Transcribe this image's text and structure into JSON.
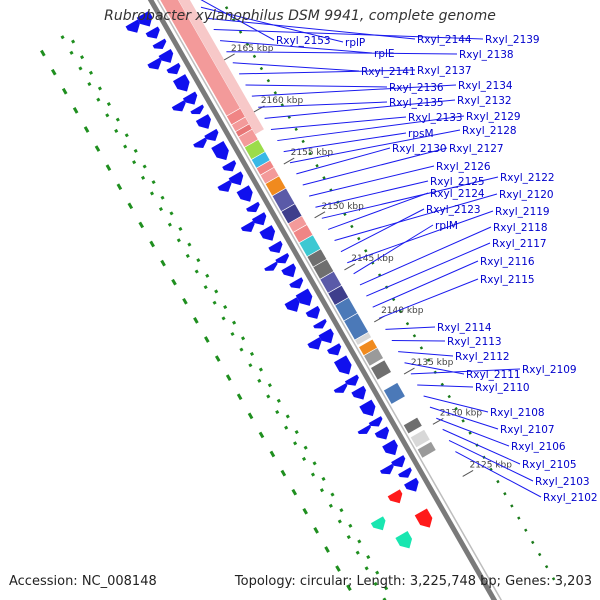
{
  "title": "Rubrobacter xylanophilus DSM 9941, complete genome",
  "accession": "Accession: NC_008148",
  "summary": "Topology: circular; Length: 3,225,748 bp; Genes: 3,203",
  "colors": {
    "gene_arrow": "#1010ee",
    "label_text": "#0000cc",
    "leader": "#1a1aee",
    "axis": "#7a7a7a",
    "gc_dots": "#1f8f1f",
    "ruler_dots": "#1a7a1a",
    "cog_palette": [
      "#f39a9a",
      "#f08585",
      "#e87676",
      "#9bdc4a",
      "#39b8e6",
      "#f08a1e",
      "#5a5aa8",
      "#3e3e8c",
      "#3dc8d2",
      "#6f6f6f",
      "#4b79b8",
      "#9a9a9a",
      "#d8d8d8",
      "#ff1a1a",
      "#19e6b0"
    ]
  },
  "ticks": [
    "2165 kbp",
    "2160 kbp",
    "2155 kbp",
    "2150 kbp",
    "2145 kbp",
    "2140 kbp",
    "2135 kbp",
    "2130 kbp",
    "2125 kbp"
  ],
  "genes": [
    {
      "label": "Rxyl_2153"
    },
    {
      "label": "rplP"
    },
    {
      "label": "Rxyl_2144"
    },
    {
      "label": "Rxyl_2139"
    },
    {
      "label": "rplE"
    },
    {
      "label": "Rxyl_2138"
    },
    {
      "label": "Rxyl_2141"
    },
    {
      "label": "Rxyl_2137"
    },
    {
      "label": "Rxyl_2136"
    },
    {
      "label": "Rxyl_2134"
    },
    {
      "label": "Rxyl_2135"
    },
    {
      "label": "Rxyl_2132"
    },
    {
      "label": "Rxyl_2133"
    },
    {
      "label": "Rxyl_2129"
    },
    {
      "label": "rpsM"
    },
    {
      "label": "Rxyl_2128"
    },
    {
      "label": "Rxyl_2130"
    },
    {
      "label": "Rxyl_2127"
    },
    {
      "label": "Rxyl_2126"
    },
    {
      "label": "Rxyl_2125"
    },
    {
      "label": "Rxyl_2122"
    },
    {
      "label": "Rxyl_2124"
    },
    {
      "label": "Rxyl_2120"
    },
    {
      "label": "Rxyl_2123"
    },
    {
      "label": "Rxyl_2119"
    },
    {
      "label": "rplM"
    },
    {
      "label": "Rxyl_2118"
    },
    {
      "label": "Rxyl_2117"
    },
    {
      "label": "Rxyl_2116"
    },
    {
      "label": "Rxyl_2115"
    },
    {
      "label": "Rxyl_2114"
    },
    {
      "label": "Rxyl_2113"
    },
    {
      "label": "Rxyl_2112"
    },
    {
      "label": "Rxyl_2111"
    },
    {
      "label": "Rxyl_2109"
    },
    {
      "label": "Rxyl_2110"
    },
    {
      "label": "Rxyl_2108"
    },
    {
      "label": "Rxyl_2107"
    },
    {
      "label": "Rxyl_2106"
    },
    {
      "label": "Rxyl_2105"
    },
    {
      "label": "Rxyl_2103"
    },
    {
      "label": "Rxyl_2102"
    }
  ]
}
